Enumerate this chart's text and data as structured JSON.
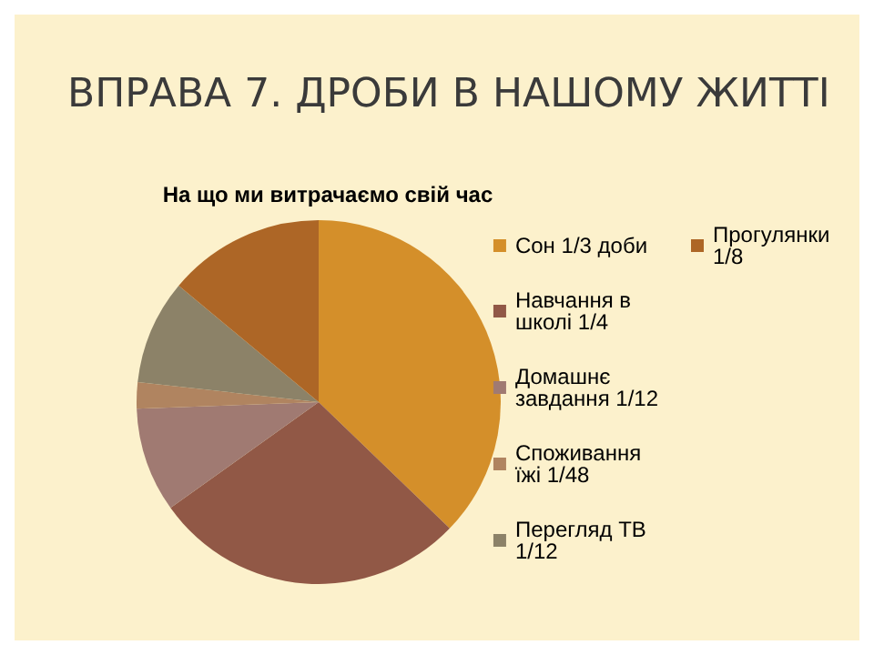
{
  "chart_data": {
    "type": "pie",
    "title": "ВПРАВА 7. ДРОБИ В НАШОМУ ЖИТТІ",
    "subtitle": "На що ми витрачаємо свій час",
    "categories": [
      "Сон 1/3 доби",
      "Навчання в школі 1/4",
      "Домашнє завдання 1/12",
      "Споживання їжі 1/48",
      "Перегляд ТВ 1/12",
      "Прогулянки 1/8"
    ],
    "values": [
      37.21,
      27.91,
      9.3,
      2.33,
      9.3,
      13.95
    ],
    "colors": [
      "#d48f2a",
      "#915846",
      "#a07a72",
      "#b08460",
      "#8c8268",
      "#ad6626"
    ],
    "legend": "right"
  }
}
